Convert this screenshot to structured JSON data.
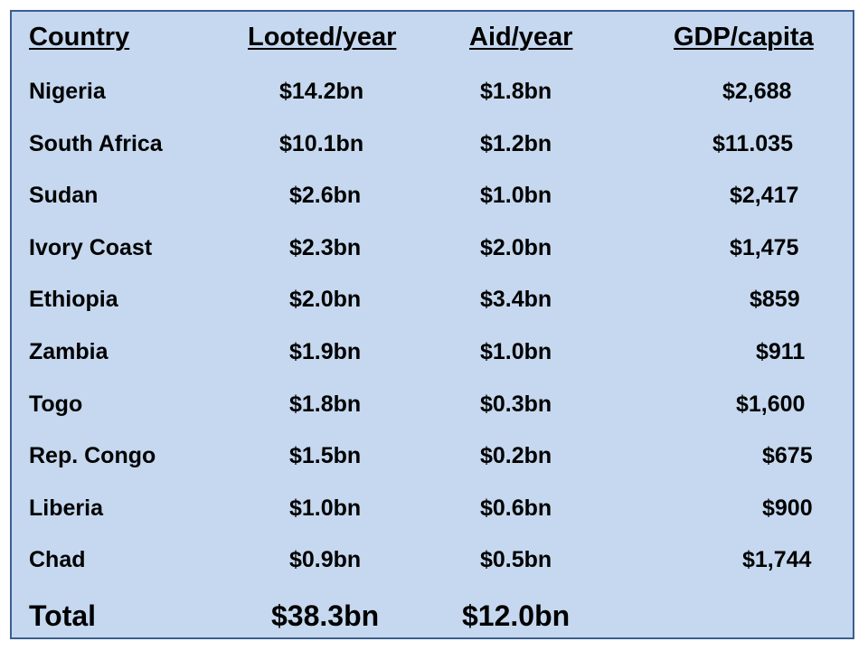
{
  "table": {
    "headers": [
      "Country",
      "Looted/year",
      "Aid/year",
      "GDP/capita"
    ],
    "rows": [
      [
        "Nigeria",
        "$14.2bn",
        "$1.8bn",
        "$2,688"
      ],
      [
        "South Africa",
        "$10.1bn",
        "$1.2bn",
        "$11.035"
      ],
      [
        "Sudan",
        "$2.6bn",
        "$1.0bn",
        "$2,417"
      ],
      [
        "Ivory Coast",
        "$2.3bn",
        "$2.0bn",
        "$1,475"
      ],
      [
        "Ethiopia",
        "$2.0bn",
        "$3.4bn",
        "$859"
      ],
      [
        "Zambia",
        "$1.9bn",
        "$1.0bn",
        "$911"
      ],
      [
        "Togo",
        "$1.8bn",
        "$0.3bn",
        "$1,600"
      ],
      [
        "Rep. Congo",
        "$1.5bn",
        "$0.2bn",
        "$675"
      ],
      [
        "Liberia",
        "$1.0bn",
        "$0.6bn",
        "$900"
      ],
      [
        "Chad",
        "$0.9bn",
        "$0.5bn",
        "$1,744"
      ]
    ],
    "total": {
      "label": "Total",
      "looted": "$38.3bn",
      "aid": "$12.0bn"
    }
  }
}
